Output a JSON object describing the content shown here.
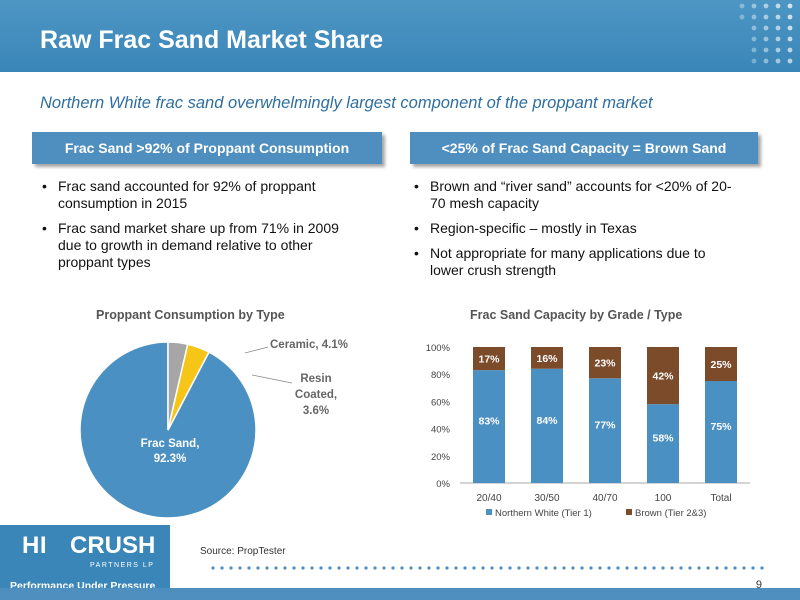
{
  "title": "Raw Frac Sand Market Share",
  "subtitle": "Northern White frac sand overwhelmingly largest component of the proppant market",
  "left_panel": {
    "heading": "Frac Sand >92% of Proppant Consumption",
    "bullets": [
      "Frac sand accounted for 92% of proppant consumption in 2015",
      "Frac sand market share up from 71% in 2009 due to growth in demand relative to other proppant types"
    ]
  },
  "right_panel": {
    "heading": "<25% of Frac Sand Capacity = Brown Sand",
    "bullets": [
      "Brown and “river sand” accounts for <20% of 20-70 mesh capacity",
      "Region-specific – mostly in Texas",
      "Not appropriate for many applications due to lower crush strength"
    ]
  },
  "chart_data": [
    {
      "type": "pie",
      "title": "Proppant Consumption by Type",
      "slices": [
        {
          "label": "Frac Sand,",
          "label_line2": "92.3%",
          "value": 92.3,
          "color": "#4a90c2"
        },
        {
          "label": "Ceramic, 4.1%",
          "value": 4.1,
          "color": "#f5c518"
        },
        {
          "label": "Resin Coated,",
          "label_line2": "3.6%",
          "value": 3.6,
          "color": "#a6a6a6"
        }
      ]
    },
    {
      "type": "bar",
      "stacked": true,
      "title": "Frac Sand Capacity by Grade / Type",
      "categories": [
        "20/40",
        "30/50",
        "40/70",
        "100",
        "Total"
      ],
      "series": [
        {
          "name": "Northern White (Tier 1)",
          "values": [
            83,
            84,
            77,
            58,
            75
          ],
          "labels": [
            "83%",
            "84%",
            "77%",
            "58%",
            "75%"
          ],
          "color": "#4a90c2"
        },
        {
          "name": "Brown (Tier 2&3)",
          "values": [
            17,
            16,
            23,
            42,
            25
          ],
          "labels": [
            "17%",
            "16%",
            "23%",
            "42%",
            "25%"
          ],
          "color": "#7b4b2a"
        }
      ],
      "yticks": [
        "0%",
        "20%",
        "40%",
        "60%",
        "80%",
        "100%"
      ],
      "ylim": [
        0,
        100
      ],
      "legend": "bottom"
    }
  ],
  "footer": {
    "source": "Source: PropTester",
    "page": "9"
  },
  "logo": {
    "hi": "HI",
    "crush": "CRUSH",
    "partners": "PARTNERS LP",
    "tagline": "Performance Under Pressure"
  }
}
